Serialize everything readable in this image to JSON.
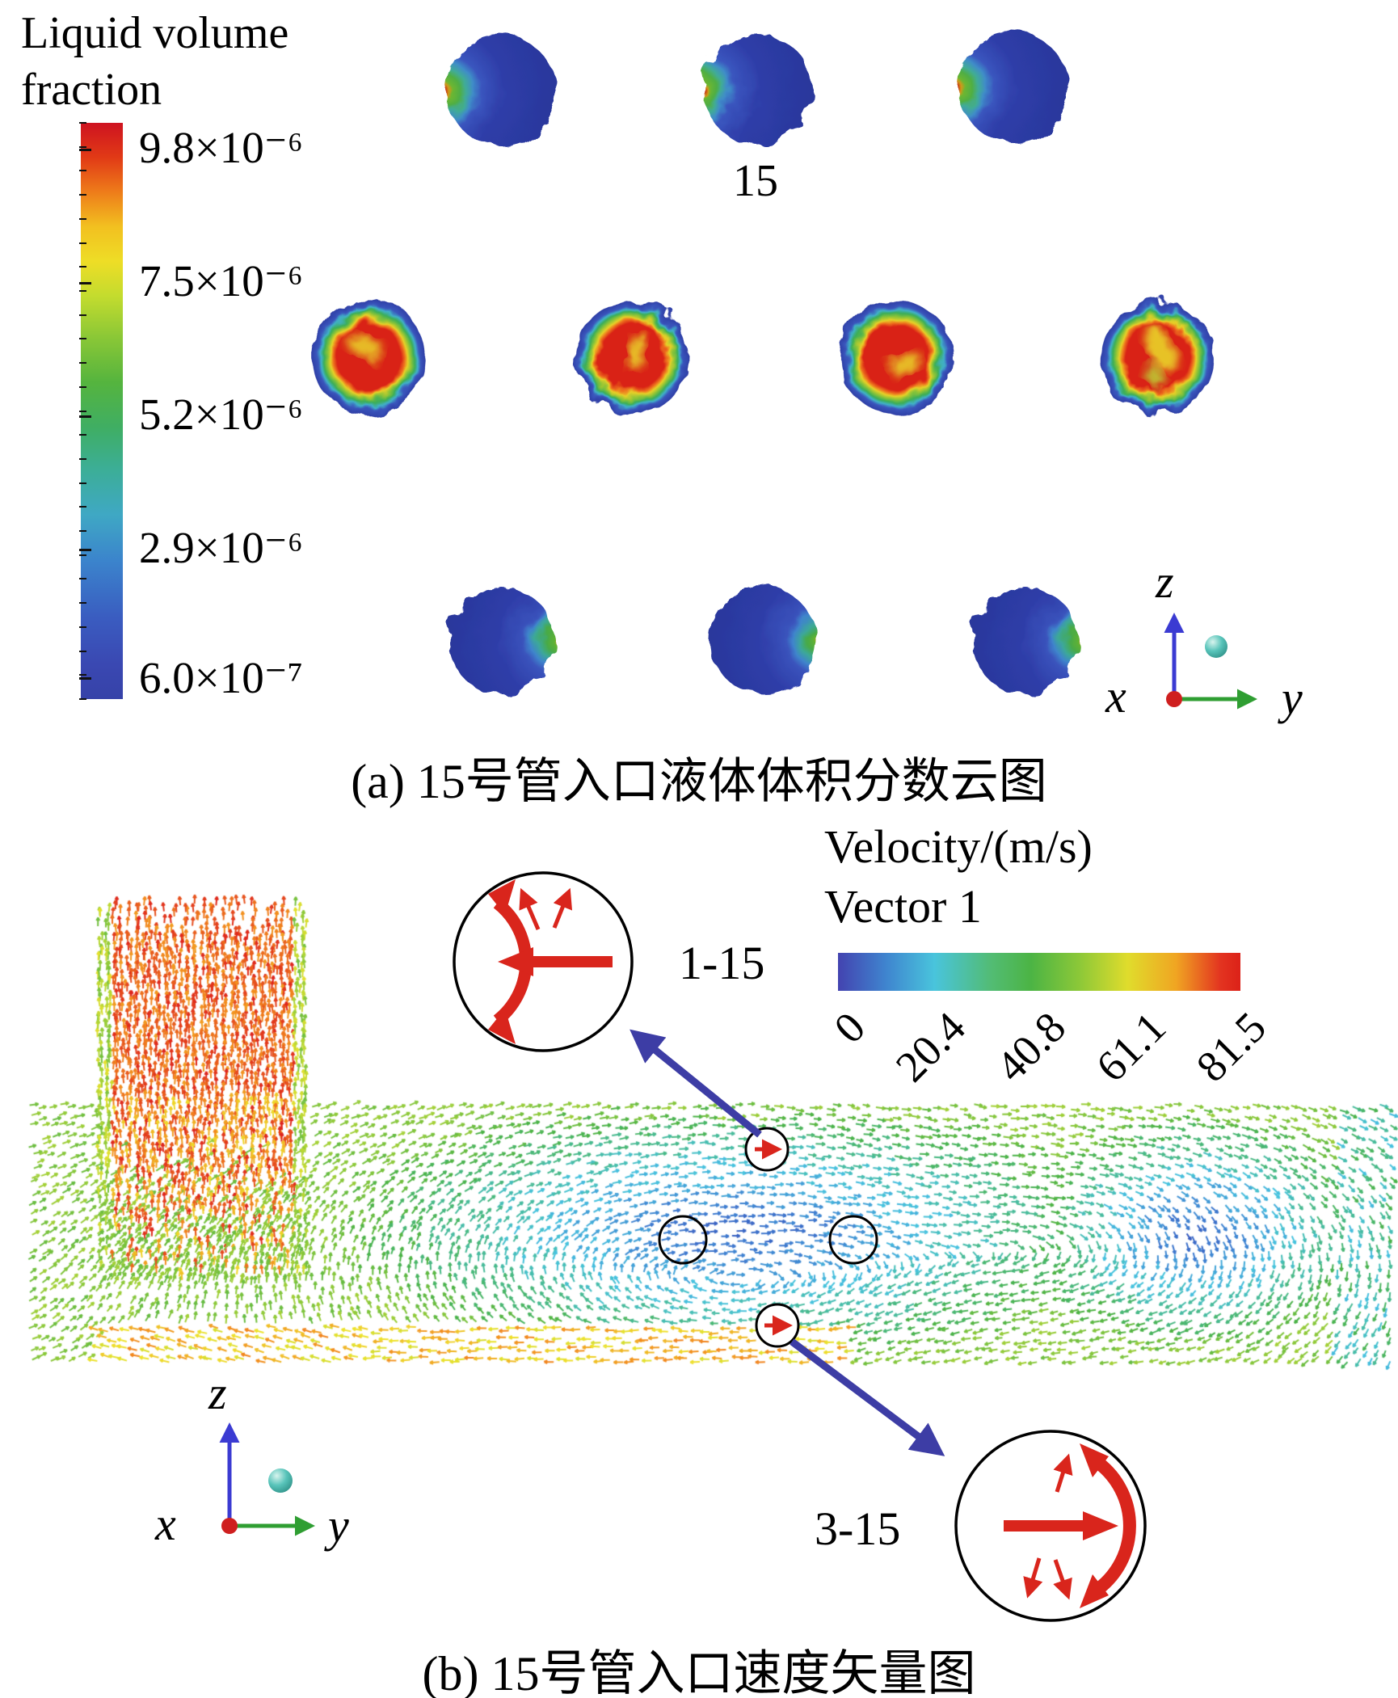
{
  "panel_a": {
    "colorbar": {
      "title": "Liquid volume fraction",
      "ticks": [
        "9.8×10⁻⁶",
        "7.5×10⁻⁶",
        "5.2×10⁻⁶",
        "2.9×10⁻⁶",
        "6.0×10⁻⁷"
      ]
    },
    "row_label": "15",
    "axes": {
      "x": "x",
      "y": "y",
      "z": "z"
    },
    "caption": "(a) 15号管入口液体体积分数云图"
  },
  "panel_b": {
    "legend": {
      "line1": "Velocity/(m/s)",
      "line2": "Vector 1",
      "ticks": [
        "0",
        "20.4",
        "40.8",
        "61.1",
        "81.5"
      ]
    },
    "inset_top_label": "1-15",
    "inset_bottom_label": "3-15",
    "axes": {
      "x": "x",
      "y": "y",
      "z": "z"
    },
    "caption": "(b) 15号管入口速度矢量图"
  },
  "colors": {
    "flow_red": "#d9251c",
    "annotation_blue": "#3d3da5",
    "axis_z_blue": "#3b3bd2",
    "axis_y_green": "#2f9e32",
    "origin_red": "#cf1f1f",
    "sphere_teal": "#58c4ba"
  },
  "chart_data": [
    {
      "type": "heatmap",
      "panel": "a",
      "title": "(a) 15号管入口液体体积分数云图",
      "colorbar_title": "Liquid volume fraction",
      "colorbar_tick_values": [
        9.8e-06,
        7.5e-06,
        5.2e-06,
        2.9e-06,
        6e-07
      ],
      "annotations": [
        "15"
      ],
      "tube_rows": [
        {
          "row": "top",
          "count": 3,
          "pattern": "mostly low fraction (blue) with thin high-fraction red/green crescent on left edge"
        },
        {
          "row": "middle",
          "count": 4,
          "pattern": "high fraction (red) core with yellow-green ring and blue rim"
        },
        {
          "row": "bottom",
          "count": 3,
          "pattern": "mostly low fraction (blue) with green/red crescent on right edge"
        }
      ]
    },
    {
      "type": "vector-field",
      "panel": "b",
      "title": "(b) 15号管入口速度矢量图",
      "legend_title": "Velocity/(m/s) Vector 1",
      "colorbar_tick_values": [
        0,
        20.4,
        40.8,
        61.1,
        81.5
      ],
      "annotations": [
        "1-15",
        "3-15"
      ],
      "description": "Velocity vectors in horizontal channel: high-velocity (orange/red) upward jet at left, large low-velocity (blue) recirculation vortices in channel core, green flow along walls, orange streak along bottom; circular insets show inlet flow split patterns at tubes 1-15 (flow toward left wall) and 3-15 (flow toward right wall)"
    }
  ]
}
